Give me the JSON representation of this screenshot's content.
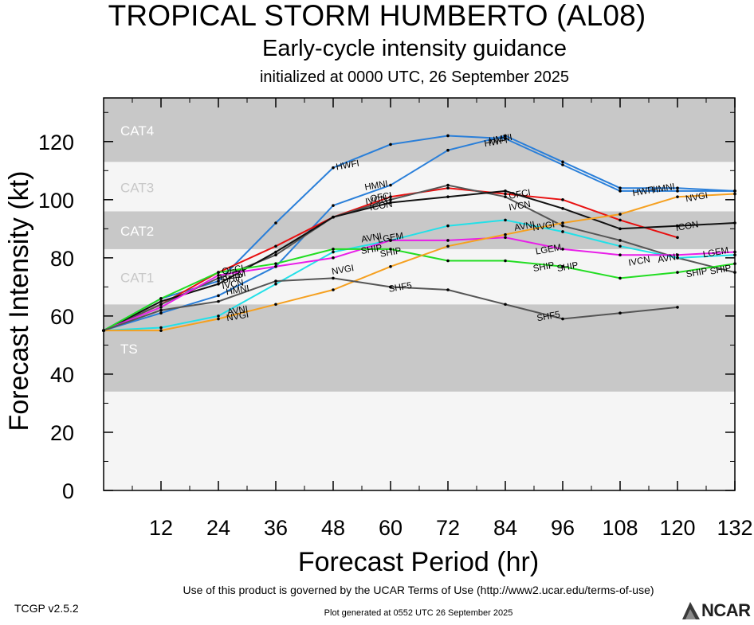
{
  "header": {
    "title": "TROPICAL STORM HUMBERTO (AL08)",
    "subtitle": "Early-cycle intensity guidance",
    "initialized": "initialized at 0000 UTC, 26 September 2025"
  },
  "footer": {
    "terms": "Use of this product is governed by the UCAR Terms of Use (http://www2.ucar.edu/terms-of-use)",
    "version": "TCGP v2.5.2",
    "generated": "Plot generated at 0552 UTC   26 September 2025",
    "logo_text": "NCAR"
  },
  "chart_data": {
    "type": "line",
    "title": "TROPICAL STORM HUMBERTO (AL08)",
    "xlabel": "Forecast Period (hr)",
    "ylabel": "Forecast Intensity (kt)",
    "xlim": [
      0,
      132
    ],
    "ylim": [
      0,
      135
    ],
    "xticks": [
      12,
      24,
      36,
      48,
      60,
      72,
      84,
      96,
      108,
      120,
      132
    ],
    "yticks": [
      0,
      20,
      40,
      60,
      80,
      100,
      120
    ],
    "category_bands": [
      {
        "label": "TS",
        "from": 34,
        "to": 64,
        "fill": "#c8c8c8"
      },
      {
        "label": "CAT1",
        "from": 64,
        "to": 83,
        "fill": "#f5f5f5"
      },
      {
        "label": "CAT2",
        "from": 83,
        "to": 96,
        "fill": "#c8c8c8"
      },
      {
        "label": "CAT3",
        "from": 96,
        "to": 113,
        "fill": "#f5f5f5"
      },
      {
        "label": "CAT4",
        "from": 113,
        "to": 137,
        "fill": "#c8c8c8"
      }
    ],
    "series": [
      {
        "name": "HWFI",
        "color": "#2a7fd9",
        "x": [
          0,
          12,
          24,
          36,
          48,
          60,
          72,
          84,
          96,
          108,
          120,
          132
        ],
        "y": [
          55,
          66,
          72,
          92,
          111,
          119,
          122,
          121,
          112,
          103,
          103,
          103
        ]
      },
      {
        "name": "HMNI",
        "color": "#2a7fd9",
        "x": [
          0,
          12,
          24,
          36,
          48,
          60,
          72,
          84,
          96,
          108,
          120,
          132
        ],
        "y": [
          55,
          61,
          67,
          77,
          98,
          105,
          117,
          122,
          113,
          104,
          104,
          103
        ]
      },
      {
        "name": "OFCI",
        "color": "#e81010",
        "x": [
          0,
          12,
          24,
          36,
          48,
          60,
          72,
          84,
          96,
          108,
          120
        ],
        "y": [
          55,
          64,
          75,
          84,
          94,
          101,
          104,
          102,
          100,
          93,
          87
        ]
      },
      {
        "name": "IVCN",
        "color": "#555555",
        "x": [
          0,
          12,
          24,
          36,
          48,
          60,
          72,
          84,
          96,
          108,
          120,
          132
        ],
        "y": [
          55,
          64,
          73,
          81,
          94,
          100,
          105,
          101,
          91,
          86,
          80,
          75
        ]
      },
      {
        "name": "ICON",
        "color": "#111111",
        "x": [
          0,
          12,
          24,
          36,
          48,
          60,
          72,
          84,
          96,
          108,
          120,
          132
        ],
        "y": [
          55,
          65,
          71,
          82,
          94,
          99,
          101,
          103,
          97,
          90,
          91,
          92
        ]
      },
      {
        "name": "AVNI",
        "color": "#22e0e8",
        "x": [
          0,
          12,
          24,
          36,
          48,
          60,
          72,
          84,
          96,
          108,
          120,
          132
        ],
        "y": [
          55,
          56,
          60,
          71,
          82,
          86,
          91,
          93,
          89,
          84,
          80,
          81
        ]
      },
      {
        "name": "LGEM",
        "color": "#e81ee8",
        "x": [
          0,
          12,
          24,
          36,
          48,
          60,
          72,
          84,
          96,
          108,
          120,
          132
        ],
        "y": [
          55,
          63,
          74,
          77,
          80,
          86,
          86,
          87,
          83,
          81,
          81,
          82
        ]
      },
      {
        "name": "SHIP",
        "color": "#22dd22",
        "x": [
          0,
          12,
          24,
          36,
          48,
          60,
          72,
          84,
          96,
          108,
          120,
          132
        ],
        "y": [
          55,
          66,
          75,
          78,
          83,
          83,
          79,
          79,
          77,
          73,
          75,
          78
        ]
      },
      {
        "name": "NVGI",
        "color": "#f5a020",
        "x": [
          0,
          12,
          24,
          36,
          48,
          60,
          72,
          84,
          96,
          108,
          120,
          132
        ],
        "y": [
          55,
          55,
          59,
          64,
          69,
          77,
          84,
          88,
          92,
          95,
          101,
          102
        ]
      },
      {
        "name": "SHF5",
        "color": "#555555",
        "x": [
          0,
          12,
          24,
          36,
          48,
          60,
          72,
          84,
          96,
          108,
          120
        ],
        "y": [
          55,
          62,
          65,
          72,
          73,
          70,
          69,
          64,
          59,
          61,
          63
        ]
      }
    ],
    "labels": [
      {
        "text": "HWFI",
        "x": 51,
        "y": 112
      },
      {
        "text": "HMNI",
        "x": 57,
        "y": 105
      },
      {
        "text": "HMNI",
        "x": 83,
        "y": 121
      },
      {
        "text": "HWFI",
        "x": 82,
        "y": 120
      },
      {
        "text": "HWFI",
        "x": 113,
        "y": 103
      },
      {
        "text": "HMNI",
        "x": 117,
        "y": 104
      },
      {
        "text": "IVCN",
        "x": 57,
        "y": 100
      },
      {
        "text": "OFCI",
        "x": 58,
        "y": 101
      },
      {
        "text": "ICON",
        "x": 58,
        "y": 98
      },
      {
        "text": "OFCI",
        "x": 87,
        "y": 102
      },
      {
        "text": "IVCN",
        "x": 87,
        "y": 98
      },
      {
        "text": "ICON",
        "x": 122,
        "y": 91
      },
      {
        "text": "NVGI",
        "x": 124,
        "y": 101
      },
      {
        "text": "AVNI",
        "x": 56,
        "y": 87
      },
      {
        "text": "LGEM",
        "x": 60,
        "y": 87
      },
      {
        "text": "SHIP",
        "x": 56,
        "y": 83
      },
      {
        "text": "SHIP",
        "x": 60,
        "y": 82
      },
      {
        "text": "AVNI",
        "x": 88,
        "y": 91
      },
      {
        "text": "NVGI",
        "x": 92,
        "y": 91
      },
      {
        "text": "LGEM",
        "x": 93,
        "y": 83
      },
      {
        "text": "SHIP",
        "x": 92,
        "y": 77
      },
      {
        "text": "SHIP",
        "x": 97,
        "y": 77
      },
      {
        "text": "LGEM",
        "x": 128,
        "y": 82
      },
      {
        "text": "IVCN",
        "x": 112,
        "y": 79
      },
      {
        "text": "AVNI",
        "x": 118,
        "y": 80
      },
      {
        "text": "SHIP",
        "x": 124,
        "y": 75
      },
      {
        "text": "SHIP",
        "x": 129,
        "y": 76
      },
      {
        "text": "NVGI",
        "x": 50,
        "y": 76
      },
      {
        "text": "SHF5",
        "x": 62,
        "y": 70
      },
      {
        "text": "SHF5",
        "x": 93,
        "y": 60
      },
      {
        "text": "OFCI",
        "x": 27,
        "y": 76
      },
      {
        "text": "LGEM",
        "x": 27,
        "y": 74
      },
      {
        "text": "SHIP",
        "x": 27,
        "y": 73
      },
      {
        "text": "IVCN",
        "x": 27,
        "y": 71
      },
      {
        "text": "HMNI",
        "x": 28,
        "y": 69
      },
      {
        "text": "AVNI",
        "x": 28,
        "y": 62
      },
      {
        "text": "NVGI",
        "x": 28,
        "y": 60
      }
    ],
    "grid": false,
    "legend": "none"
  }
}
